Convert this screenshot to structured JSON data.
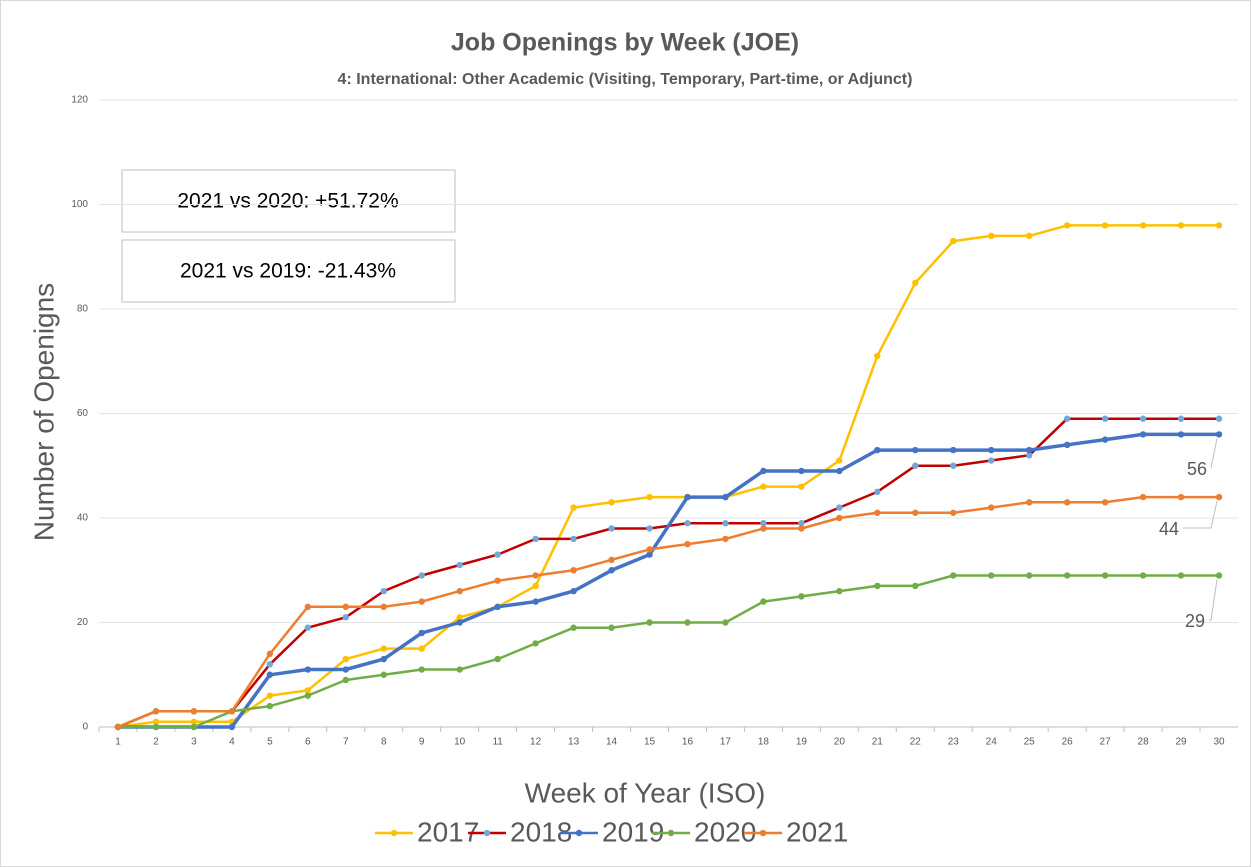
{
  "chart_data": {
    "type": "line",
    "title": "Job Openings by Week (JOE)",
    "subtitle": "4: International: Other Academic (Visiting, Temporary, Part-time, or Adjunct)",
    "x_label": "Week of Year (ISO)",
    "y_label": "Number of Openigns",
    "annotations": [
      "2021 vs 2020: +51.72%",
      "2021 vs 2019: -21.43%"
    ],
    "categories": [
      1,
      2,
      3,
      4,
      5,
      6,
      7,
      8,
      9,
      10,
      11,
      12,
      13,
      14,
      15,
      16,
      17,
      18,
      19,
      20,
      21,
      22,
      23,
      24,
      25,
      26,
      27,
      28,
      29,
      30
    ],
    "ylim": [
      0,
      120
    ],
    "yticks": [
      0,
      20,
      40,
      60,
      80,
      100,
      120
    ],
    "grid": true,
    "legend": "bottom",
    "series": [
      {
        "name": "2017",
        "color": "#FFC000",
        "values": [
          0,
          1,
          1,
          1,
          6,
          7,
          13,
          15,
          15,
          21,
          23,
          27,
          42,
          43,
          44,
          44,
          44,
          46,
          46,
          51,
          71,
          85,
          93,
          94,
          94,
          96,
          96,
          96,
          96,
          96
        ]
      },
      {
        "name": "2018",
        "color": "#C00000",
        "marker_color": "#6FA8DC",
        "values": [
          0,
          3,
          3,
          3,
          12,
          19,
          21,
          26,
          29,
          31,
          33,
          36,
          36,
          38,
          38,
          39,
          39,
          39,
          39,
          42,
          45,
          50,
          50,
          51,
          52,
          59,
          59,
          59,
          59,
          59
        ]
      },
      {
        "name": "2019",
        "color": "#4472C4",
        "values": [
          0,
          0,
          0,
          0,
          10,
          11,
          11,
          13,
          18,
          20,
          23,
          24,
          26,
          30,
          33,
          44,
          44,
          49,
          49,
          49,
          53,
          53,
          53,
          53,
          53,
          54,
          55,
          56,
          56,
          56
        ]
      },
      {
        "name": "2020",
        "color": "#70AD47",
        "values": [
          0,
          0,
          0,
          3,
          4,
          6,
          9,
          10,
          11,
          11,
          13,
          16,
          19,
          19,
          20,
          20,
          20,
          24,
          25,
          26,
          27,
          27,
          29,
          29,
          29,
          29,
          29,
          29,
          29,
          29
        ]
      },
      {
        "name": "2021",
        "color": "#ED7D31",
        "values": [
          0,
          3,
          3,
          3,
          14,
          23,
          23,
          23,
          24,
          26,
          28,
          29,
          30,
          32,
          34,
          35,
          36,
          38,
          38,
          40,
          41,
          41,
          41,
          42,
          43,
          43,
          43,
          44,
          44,
          44
        ]
      }
    ]
  }
}
